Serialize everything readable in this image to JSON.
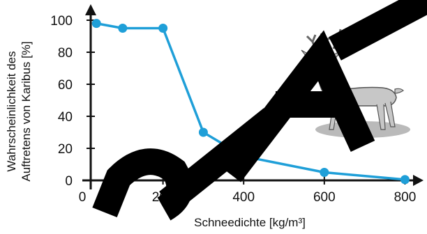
{
  "chart_data": {
    "type": "line",
    "x": [
      35,
      100,
      200,
      300,
      400,
      600,
      800
    ],
    "series": [
      {
        "values": [
          98,
          95,
          95,
          30,
          15,
          5,
          0.5
        ]
      }
    ],
    "xlim": [
      0,
      820
    ],
    "ylim": [
      0,
      105
    ],
    "x_ticks": [
      "0",
      "200",
      "400",
      "600",
      "800"
    ],
    "y_ticks": [
      "0",
      "20",
      "40",
      "60",
      "80",
      "100"
    ],
    "ylabel_line1": "Wahrscheinlichkeit des",
    "ylabel_line2": "Auftretens von Karibus [%]",
    "xlabel": "Schneedichte [kg/m³]",
    "grid": false,
    "colors": {
      "series": "#1f9fd8",
      "axis": "#111111",
      "watermark": "#000000"
    },
    "decoration": "caribou-illustration"
  }
}
